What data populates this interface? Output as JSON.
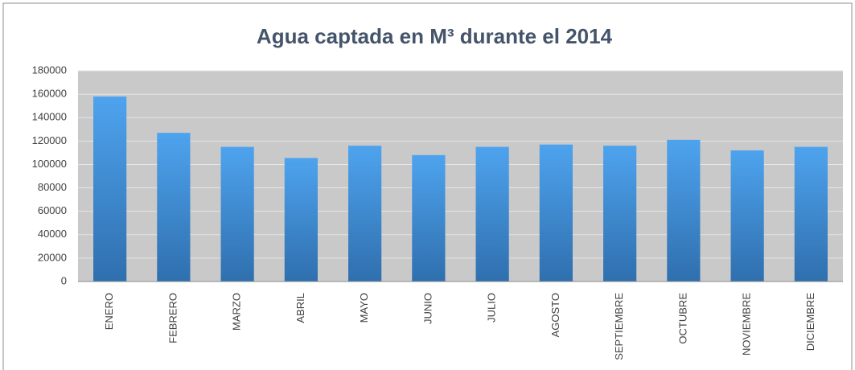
{
  "chart_data": {
    "type": "bar",
    "title": "Agua captada en M³ durante el 2014",
    "categories": [
      "ENERO",
      "FEBRERO",
      "MARZO",
      "ABRIL",
      "MAYO",
      "JUNIO",
      "JULIO",
      "AGOSTO",
      "SEPTIEMBRE",
      "OCTUBRE",
      "NOVIEMBRE",
      "DICIEMBRE"
    ],
    "values": [
      158000,
      127000,
      115000,
      105500,
      116000,
      108000,
      115000,
      117000,
      116000,
      121000,
      112000,
      115000
    ],
    "color": "#3d8fda",
    "ylim": [
      0,
      180000
    ],
    "yticks": [
      0,
      20000,
      40000,
      60000,
      80000,
      100000,
      120000,
      140000,
      160000,
      180000
    ],
    "grid": true
  }
}
